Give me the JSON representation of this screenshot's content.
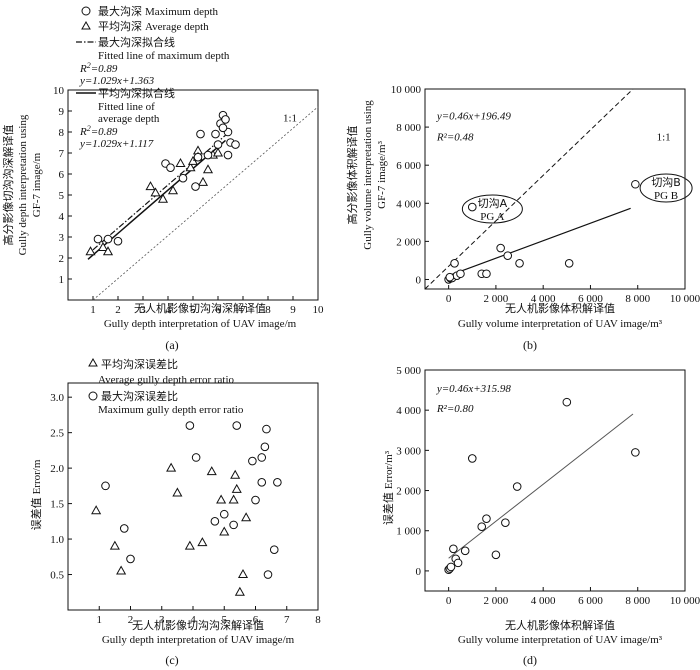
{
  "chart_data": [
    {
      "id": "a",
      "type": "scatter",
      "panel_label": "(a)",
      "xlabel_cn": "无人机影像切沟沟深解译值",
      "xlabel_en": "Gully depth interpretation of UAV image/m",
      "ylabel_cn": "高分影像切沟沟深解译值",
      "ylabel_en_1": "Gully depth interpretation using",
      "ylabel_en_2": "GF-7 image/m",
      "xlim": [
        0,
        10
      ],
      "ylim": [
        0,
        10
      ],
      "xticks": [
        "1",
        "2",
        "3",
        "4",
        "5",
        "6",
        "7",
        "8",
        "9",
        "10"
      ],
      "yticks": [
        "1",
        "2",
        "3",
        "4",
        "5",
        "6",
        "7",
        "8",
        "9",
        "10"
      ],
      "one_to_one_label": "1:1",
      "legend": {
        "max_cn": "最大沟深",
        "max_en": "Maximum depth",
        "avg_cn": "平均沟深",
        "avg_en": "Average depth",
        "fit_max_cn": "最大沟深拟合线",
        "fit_max_en": "Fitted line of maximum depth",
        "r2_max": "0.89",
        "eq_max": "y=1.029x+1.363",
        "fit_avg_cn": "平均沟深拟合线",
        "fit_avg_en_1": "Fitted line of",
        "fit_avg_en_2": "average depth",
        "r2_avg": "0.89",
        "eq_avg": "y=1.029x+1.117"
      },
      "series": [
        {
          "name": "Maximum depth",
          "marker": "circle",
          "points": [
            [
              1.2,
              2.9
            ],
            [
              1.6,
              2.9
            ],
            [
              2.0,
              2.8
            ],
            [
              3.9,
              6.5
            ],
            [
              4.1,
              6.3
            ],
            [
              4.6,
              5.8
            ],
            [
              5.1,
              5.4
            ],
            [
              5.2,
              6.8
            ],
            [
              5.3,
              7.9
            ],
            [
              5.6,
              6.9
            ],
            [
              5.9,
              7.9
            ],
            [
              6.0,
              7.4
            ],
            [
              6.1,
              8.4
            ],
            [
              6.2,
              8.8
            ],
            [
              6.3,
              8.6
            ],
            [
              6.4,
              8.0
            ],
            [
              6.4,
              6.9
            ],
            [
              6.5,
              7.5
            ],
            [
              6.7,
              7.4
            ],
            [
              6.2,
              8.2
            ]
          ]
        },
        {
          "name": "Average depth",
          "marker": "triangle",
          "points": [
            [
              0.9,
              2.3
            ],
            [
              1.4,
              2.5
            ],
            [
              1.6,
              2.3
            ],
            [
              3.3,
              5.4
            ],
            [
              3.5,
              5.1
            ],
            [
              3.8,
              4.8
            ],
            [
              4.2,
              5.2
            ],
            [
              4.5,
              6.5
            ],
            [
              4.9,
              6.3
            ],
            [
              5.0,
              6.6
            ],
            [
              5.2,
              7.1
            ],
            [
              5.2,
              6.8
            ],
            [
              5.4,
              5.6
            ],
            [
              5.6,
              6.2
            ],
            [
              5.8,
              6.9
            ],
            [
              6.0,
              7.0
            ]
          ]
        }
      ],
      "fits": [
        {
          "name": "max",
          "slope": 1.029,
          "intercept": 1.363,
          "range": [
            1.0,
            6.3
          ]
        },
        {
          "name": "avg",
          "slope": 1.029,
          "intercept": 1.117,
          "range": [
            0.8,
            6.3
          ]
        }
      ]
    },
    {
      "id": "b",
      "type": "scatter",
      "panel_label": "(b)",
      "xlabel_cn": "无人机影像体积解译值",
      "xlabel_en": "Gully volume interpretation of UAV image/m³",
      "ylabel_cn": "高分影像体积解译值",
      "ylabel_en_1": "Gully volume interpretation using",
      "ylabel_en_2": "GF-7 image/m³",
      "xlim": [
        -1000,
        10000
      ],
      "ylim": [
        -500,
        10000
      ],
      "xticks": [
        "0",
        "2 000",
        "4 000",
        "6 000",
        "8 000",
        "10 000"
      ],
      "yticks": [
        "0",
        "2 000",
        "4 000",
        "6 000",
        "8 000",
        "10 000"
      ],
      "one_to_one_label": "1:1",
      "equation": "y=0.46x+196.49",
      "r2": "0.48",
      "fit": {
        "slope": 0.46,
        "intercept": 196.49,
        "range": [
          0,
          7700
        ]
      },
      "callouts": [
        {
          "cn": "切沟A",
          "en": "PG A"
        },
        {
          "cn": "切沟B",
          "en": "PG B"
        }
      ],
      "points": [
        [
          0,
          0
        ],
        [
          80,
          60
        ],
        [
          150,
          80
        ],
        [
          250,
          850
        ],
        [
          350,
          200
        ],
        [
          500,
          300
        ],
        [
          1000,
          3800
        ],
        [
          1400,
          300
        ],
        [
          1600,
          300
        ],
        [
          2200,
          1650
        ],
        [
          2500,
          1250
        ],
        [
          3000,
          850
        ],
        [
          5100,
          850
        ],
        [
          7900,
          5000
        ],
        [
          50,
          120
        ]
      ]
    },
    {
      "id": "c",
      "type": "scatter",
      "panel_label": "(c)",
      "xlabel_cn": "无人机影像切沟沟深解译值",
      "xlabel_en": "Gully depth interpretation of UAV image/m",
      "ylabel_cn": "误差值",
      "ylabel_en": "Error/m",
      "xlim": [
        0,
        8
      ],
      "ylim": [
        0,
        3.0
      ],
      "xticks": [
        "1",
        "2",
        "3",
        "4",
        "5",
        "6",
        "7",
        "8"
      ],
      "yticks": [
        "0.5",
        "1.0",
        "1.5",
        "2.0",
        "2.5",
        "3.0"
      ],
      "legend": {
        "avg_cn": "平均沟深误差比",
        "avg_en": "Average gully depth error ratio",
        "max_cn": "最大沟深误差比",
        "max_en": "Maximum gully depth error ratio"
      },
      "series": [
        {
          "name": "Average gully depth error ratio",
          "marker": "triangle",
          "points": [
            [
              0.9,
              1.4
            ],
            [
              1.5,
              0.9
            ],
            [
              1.7,
              0.55
            ],
            [
              3.3,
              2.0
            ],
            [
              3.5,
              1.65
            ],
            [
              3.9,
              0.9
            ],
            [
              4.3,
              0.95
            ],
            [
              4.6,
              1.95
            ],
            [
              4.9,
              1.55
            ],
            [
              5.0,
              1.1
            ],
            [
              5.3,
              1.55
            ],
            [
              5.35,
              1.9
            ],
            [
              5.4,
              1.7
            ],
            [
              5.5,
              0.25
            ],
            [
              5.6,
              0.5
            ],
            [
              5.7,
              1.3
            ]
          ]
        },
        {
          "name": "Maximum gully depth error ratio",
          "marker": "circle",
          "points": [
            [
              1.2,
              1.75
            ],
            [
              1.8,
              1.15
            ],
            [
              2.0,
              0.72
            ],
            [
              3.9,
              2.6
            ],
            [
              4.1,
              2.15
            ],
            [
              4.7,
              1.25
            ],
            [
              5.0,
              1.35
            ],
            [
              5.3,
              1.2
            ],
            [
              5.4,
              2.6
            ],
            [
              5.9,
              2.1
            ],
            [
              6.0,
              1.55
            ],
            [
              6.2,
              2.15
            ],
            [
              6.2,
              1.8
            ],
            [
              6.3,
              2.3
            ],
            [
              6.35,
              2.55
            ],
            [
              6.4,
              0.5
            ],
            [
              6.6,
              0.85
            ],
            [
              6.7,
              1.8
            ]
          ]
        }
      ]
    },
    {
      "id": "d",
      "type": "scatter",
      "panel_label": "(d)",
      "xlabel_cn": "无人机影像体积解译值",
      "xlabel_en": "Gully volume interpretation of UAV image/m³",
      "ylabel_cn": "误差值",
      "ylabel_en": "Error/m³",
      "xlim": [
        -1000,
        10000
      ],
      "ylim": [
        -500,
        5000
      ],
      "xticks": [
        "0",
        "2 000",
        "4 000",
        "6 000",
        "8 000",
        "10 000"
      ],
      "yticks": [
        "0",
        "1 000",
        "2 000",
        "3 000",
        "4 000",
        "5 000"
      ],
      "equation": "y=0.46x+315.98",
      "r2": "0.80",
      "fit": {
        "slope": 0.46,
        "intercept": 315.98,
        "range": [
          0,
          7800
        ]
      },
      "points": [
        [
          0,
          30
        ],
        [
          50,
          60
        ],
        [
          100,
          100
        ],
        [
          200,
          550
        ],
        [
          300,
          300
        ],
        [
          400,
          200
        ],
        [
          700,
          500
        ],
        [
          1000,
          2800
        ],
        [
          1400,
          1100
        ],
        [
          1600,
          1300
        ],
        [
          2000,
          400
        ],
        [
          2400,
          1200
        ],
        [
          2900,
          2100
        ],
        [
          5000,
          4200
        ],
        [
          7900,
          2950
        ]
      ]
    }
  ]
}
